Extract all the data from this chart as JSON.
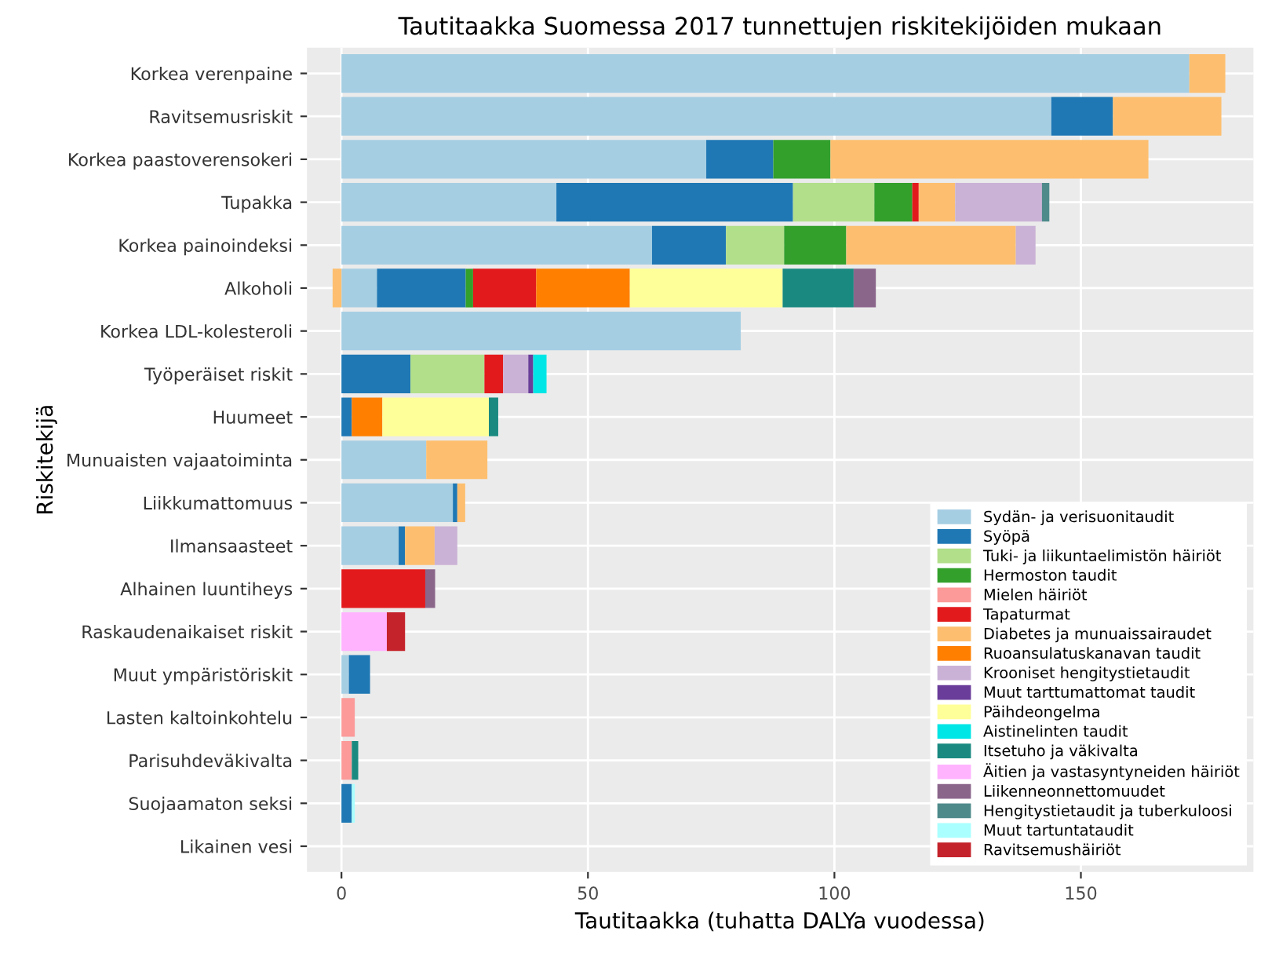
{
  "chart_data": {
    "type": "bar",
    "orientation": "horizontal",
    "stacked": true,
    "title": "Tautitaakka Suomessa 2017 tunnettujen riskitekijöiden mukaan",
    "xlabel": "Tautitaakka (tuhatta DALYa vuodessa)",
    "ylabel": "Riskitekijä",
    "categories": [
      "Korkea verenpaine",
      "Ravitsemusriskit",
      "Korkea paastoverensokeri",
      "Tupakka",
      "Korkea painoindeksi",
      "Alkoholi",
      "Korkea LDL-kolesteroli",
      "Työperäiset riskit",
      "Huumeet",
      "Munuaisten vajaatoiminta",
      "Liikkumattomuus",
      "Ilmansaasteet",
      "Alhainen luuntiheys",
      "Raskaudenaikaiset riskit",
      "Muut ympäristöriskit",
      "Lasten kaltoinkohtelu",
      "Parisuhdeväkivalta",
      "Suojaamaton seksi",
      "Likainen vesi"
    ],
    "xlim": [
      -7,
      185
    ],
    "xticks": [
      0,
      50,
      100,
      150
    ],
    "grid": true,
    "legend": "bottom right",
    "series": [
      {
        "name": "Sydän- ja verisuonitaudit",
        "color": "#a6cee3",
        "values": [
          172,
          144,
          74,
          43.6,
          63,
          7.2,
          81,
          null,
          null,
          17.2,
          22.6,
          11.6,
          null,
          null,
          1.5,
          null,
          null,
          null,
          null
        ]
      },
      {
        "name": "Syöpä",
        "color": "#1f78b4",
        "values": [
          null,
          12.5,
          13.6,
          48,
          15,
          18,
          null,
          14,
          2.1,
          null,
          0.9,
          1.3,
          null,
          null,
          4.3,
          null,
          null,
          2.1,
          null
        ]
      },
      {
        "name": "Tuki- ja liikuntaelimistön häiriöt",
        "color": "#b2df8a",
        "values": [
          null,
          null,
          null,
          16.5,
          11.8,
          null,
          null,
          15,
          null,
          null,
          null,
          null,
          null,
          null,
          null,
          null,
          null,
          null,
          null
        ]
      },
      {
        "name": "Hermoston taudit",
        "color": "#33a02c",
        "values": [
          null,
          null,
          11.6,
          7.7,
          12.6,
          1.5,
          null,
          null,
          null,
          null,
          null,
          null,
          null,
          null,
          null,
          null,
          null,
          null,
          null
        ]
      },
      {
        "name": "Mielen häiriöt",
        "color": "#fb9a99",
        "values": [
          null,
          null,
          null,
          null,
          null,
          null,
          null,
          null,
          null,
          null,
          null,
          null,
          null,
          null,
          null,
          2.7,
          2.1,
          null,
          null
        ]
      },
      {
        "name": "Tapaturmat",
        "color": "#e31a1c",
        "values": [
          null,
          null,
          null,
          1.3,
          null,
          12.8,
          null,
          3.8,
          null,
          null,
          null,
          null,
          17,
          null,
          null,
          null,
          null,
          null,
          null
        ]
      },
      {
        "name": "Diabetes ja munuaissairaudet",
        "color": "#fdbf6f",
        "values": [
          7.3,
          22,
          64.5,
          7.4,
          34.4,
          -1.8,
          null,
          null,
          null,
          12.4,
          1.6,
          6,
          null,
          null,
          null,
          null,
          null,
          null,
          null
        ]
      },
      {
        "name": "Ruoansulatuskanavan taudit",
        "color": "#ff7f00",
        "values": [
          null,
          null,
          null,
          null,
          null,
          19,
          null,
          null,
          6.2,
          null,
          null,
          null,
          null,
          null,
          null,
          null,
          null,
          null,
          null
        ]
      },
      {
        "name": "Krooniset hengitystietaudit",
        "color": "#cab2d6",
        "values": [
          null,
          null,
          null,
          17.6,
          4,
          null,
          null,
          5.1,
          null,
          null,
          null,
          4.6,
          null,
          null,
          null,
          null,
          null,
          null,
          null
        ]
      },
      {
        "name": "Muut tarttumattomat taudit",
        "color": "#6a3d9a",
        "values": [
          null,
          null,
          null,
          null,
          null,
          null,
          null,
          1,
          null,
          null,
          null,
          null,
          null,
          null,
          null,
          null,
          null,
          null,
          null
        ]
      },
      {
        "name": "Päihdeongelma",
        "color": "#ffff99",
        "values": [
          null,
          null,
          null,
          null,
          null,
          31,
          null,
          null,
          21.6,
          null,
          null,
          null,
          null,
          null,
          null,
          null,
          null,
          null,
          null
        ]
      },
      {
        "name": "Aistinelinten taudit",
        "color": "#00e5e5",
        "values": [
          null,
          null,
          null,
          null,
          null,
          null,
          null,
          2.7,
          null,
          null,
          null,
          null,
          null,
          null,
          null,
          null,
          null,
          null,
          null
        ]
      },
      {
        "name": "Itsetuho ja väkivalta",
        "color": "#1a8a80",
        "values": [
          null,
          null,
          null,
          null,
          null,
          14.4,
          null,
          null,
          1.9,
          null,
          null,
          null,
          null,
          null,
          null,
          null,
          1.3,
          null,
          null
        ]
      },
      {
        "name": "Äitien ja vastasyntyneiden häiriöt",
        "color": "#ffb3ff",
        "values": [
          null,
          null,
          null,
          null,
          null,
          null,
          null,
          null,
          null,
          null,
          null,
          null,
          null,
          9.2,
          null,
          null,
          null,
          null,
          null
        ]
      },
      {
        "name": "Liikenneonnettomuudet",
        "color": "#8b668b",
        "values": [
          null,
          null,
          null,
          null,
          null,
          4.5,
          null,
          null,
          null,
          null,
          null,
          null,
          2,
          null,
          null,
          null,
          null,
          null,
          null
        ]
      },
      {
        "name": "Hengitystietaudit ja tuberkuloosi",
        "color": "#4f8a8b",
        "values": [
          null,
          null,
          null,
          1.5,
          null,
          null,
          null,
          null,
          null,
          null,
          null,
          null,
          null,
          null,
          null,
          null,
          null,
          null,
          null
        ]
      },
      {
        "name": "Muut tartuntataudit",
        "color": "#aaffff",
        "values": [
          null,
          null,
          null,
          null,
          null,
          null,
          null,
          null,
          null,
          null,
          null,
          null,
          null,
          null,
          null,
          null,
          null,
          0.6,
          null
        ]
      },
      {
        "name": "Ravitsemushäiriöt",
        "color": "#c5232b",
        "values": [
          null,
          null,
          null,
          null,
          null,
          null,
          null,
          null,
          null,
          null,
          null,
          null,
          null,
          3.7,
          null,
          null,
          null,
          null,
          null
        ]
      }
    ]
  }
}
